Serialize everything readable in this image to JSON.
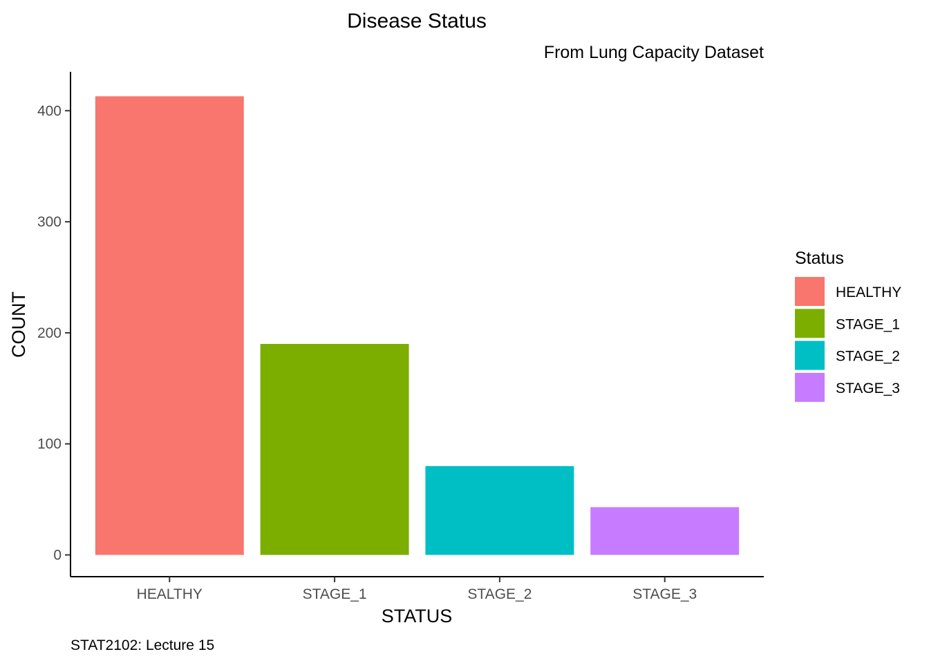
{
  "chart_data": {
    "type": "bar",
    "title": "Disease Status",
    "subtitle": "From Lung Capacity Dataset",
    "caption": "STAT2102: Lecture 15",
    "xlabel": "STATUS",
    "ylabel": "COUNT",
    "categories": [
      "HEALTHY",
      "STAGE_1",
      "STAGE_2",
      "STAGE_3"
    ],
    "values": [
      413,
      190,
      80,
      43
    ],
    "colors": [
      "#F8766D",
      "#7CAE00",
      "#00BFC4",
      "#C77CFF"
    ],
    "ylim": [
      0,
      433
    ],
    "yticks": [
      0,
      100,
      200,
      300,
      400
    ],
    "grid": false,
    "legend": {
      "title": "Status",
      "placement": "right",
      "entries": [
        "HEALTHY",
        "STAGE_1",
        "STAGE_2",
        "STAGE_3"
      ]
    }
  }
}
